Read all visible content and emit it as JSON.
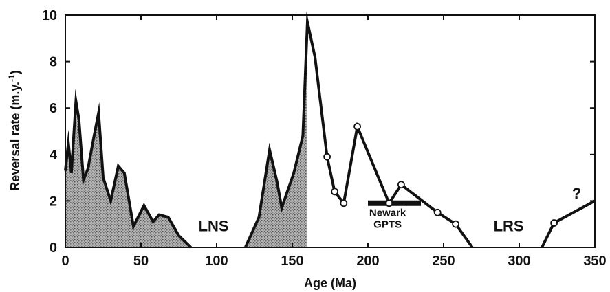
{
  "chart_data": {
    "type": "line",
    "xlabel": "Age (Ma)",
    "ylabel_main": "Reversal rate  (m.y.",
    "ylabel_sup": "-1",
    "ylabel_end": ")",
    "xlim": [
      0,
      350
    ],
    "ylim": [
      0,
      10
    ],
    "xticks": [
      0,
      50,
      100,
      150,
      200,
      250,
      300,
      350
    ],
    "yticks": [
      0,
      2,
      4,
      6,
      8,
      10
    ],
    "xtick_labels": [
      "0",
      "50",
      "100",
      "150",
      "200",
      "250",
      "300",
      "350"
    ],
    "ytick_labels": [
      "0",
      "2",
      "4",
      "6",
      "8",
      "10"
    ],
    "grid": false,
    "series": [
      {
        "values_xy": [
          [
            0,
            3.3
          ],
          [
            2,
            4.5
          ],
          [
            4,
            3.2
          ],
          [
            7,
            6.3
          ],
          [
            9,
            5.5
          ],
          [
            12,
            2.9
          ],
          [
            15,
            3.4
          ],
          [
            19,
            4.8
          ],
          [
            22,
            5.8
          ],
          [
            25,
            3.0
          ],
          [
            30,
            2.0
          ],
          [
            35,
            3.5
          ],
          [
            39,
            3.2
          ],
          [
            45,
            0.9
          ],
          [
            52,
            1.8
          ],
          [
            58,
            1.1
          ],
          [
            62,
            1.4
          ],
          [
            68,
            1.3
          ],
          [
            75,
            0.5
          ],
          [
            83,
            0.0
          ]
        ],
        "shaded": true
      },
      {
        "values_xy": [
          [
            119,
            0.0
          ],
          [
            128,
            1.3
          ],
          [
            135,
            4.2
          ],
          [
            140,
            2.8
          ],
          [
            143,
            1.7
          ],
          [
            151,
            3.2
          ],
          [
            157,
            4.8
          ],
          [
            160,
            9.7
          ],
          [
            165,
            8.2
          ],
          [
            173,
            3.9
          ],
          [
            178,
            2.4
          ],
          [
            184,
            1.9
          ],
          [
            193,
            5.2
          ],
          [
            214,
            1.9
          ],
          [
            222,
            2.7
          ],
          [
            246,
            1.5
          ],
          [
            258,
            1.0
          ],
          [
            269,
            0.0
          ]
        ],
        "shaded_until_x": 160,
        "open_markers": [
          [
            173,
            3.9
          ],
          [
            178,
            2.4
          ],
          [
            184,
            1.9
          ],
          [
            193,
            5.2
          ],
          [
            214,
            1.9
          ],
          [
            222,
            2.7
          ],
          [
            246,
            1.5
          ],
          [
            258,
            1.0
          ]
        ]
      },
      {
        "values_xy": [
          [
            315,
            0.0
          ],
          [
            323,
            1.05
          ],
          [
            350,
            2.0
          ]
        ],
        "open_markers": [
          [
            323,
            1.05
          ]
        ]
      }
    ],
    "annotations": [
      {
        "text": "LNS",
        "x": 98,
        "y": 0.7
      },
      {
        "text": "LRS",
        "x": 293,
        "y": 0.7
      },
      {
        "text": "?",
        "x": 338,
        "y": 2.1
      },
      {
        "text": "Newark",
        "x": 213,
        "y": 1.35
      },
      {
        "text": "GPTS",
        "x": 213,
        "y": 0.85
      }
    ],
    "newark_gpts_bar": {
      "x_start": 200,
      "x_end": 235,
      "y": 1.9
    },
    "colors": {
      "line": "#111111",
      "fill": "#9a9a9a",
      "marker_fill": "#ffffff"
    }
  }
}
